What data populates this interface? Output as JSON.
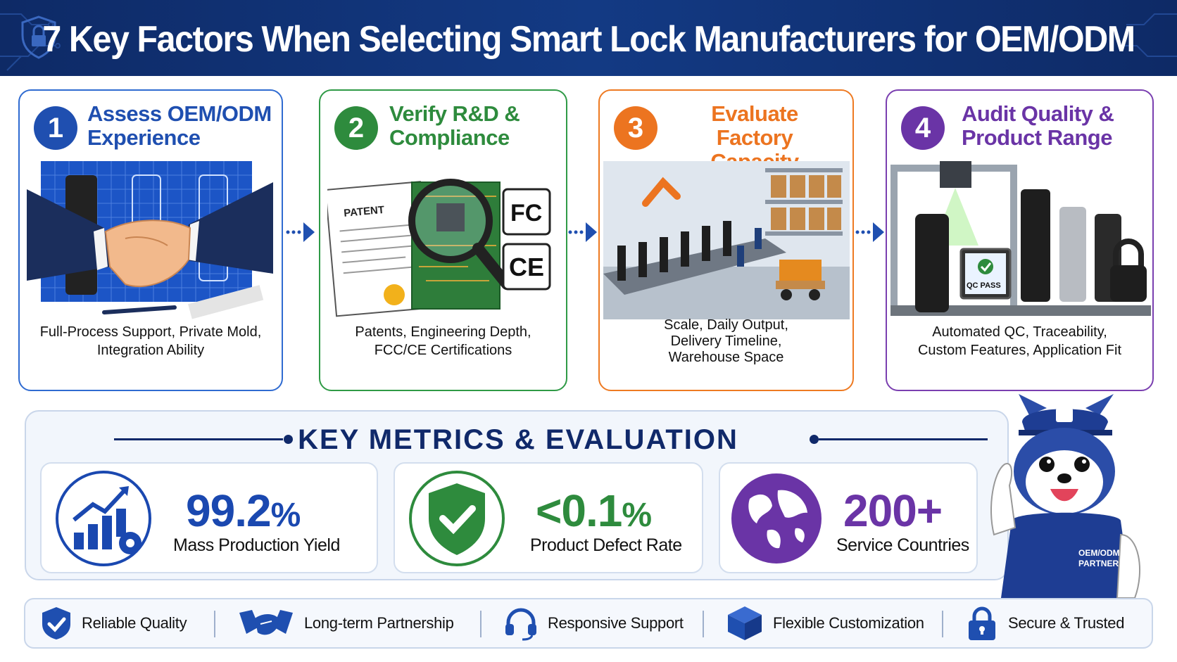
{
  "header": {
    "title": "7 Key Factors When Selecting Smart Lock Manufacturers for OEM/ODM"
  },
  "steps": [
    {
      "number": "1",
      "title_line1": "Assess OEM/ODM",
      "title_line2": "Experience",
      "desc_line1": "Full-Process Support, Private Mold,",
      "desc_line2": "Integration Ability",
      "desc_line3": "",
      "color": "#1f4fb0"
    },
    {
      "number": "2",
      "title_line1": "Verify R&D &",
      "title_line2": "Compliance",
      "desc_line1": "Patents, Engineering Depth,",
      "desc_line2": "FCC/CE Certifications",
      "desc_line3": "",
      "color": "#2e8b3d",
      "patent_label": "PATENT",
      "cert_fc": "FC",
      "cert_ce": "CE"
    },
    {
      "number": "3",
      "title_line1": "Evaluate Factory",
      "title_line2": "Capacity",
      "desc_line1": "Scale, Daily Output,",
      "desc_line2": "Delivery Timeline,",
      "desc_line3": "Warehouse Space",
      "color": "#ec7420"
    },
    {
      "number": "4",
      "title_line1": "Audit Quality &",
      "title_line2": "Product Range",
      "desc_line1": "Automated QC, Traceability,",
      "desc_line2": "Custom Features, Application Fit",
      "desc_line3": "",
      "color": "#6a34a6",
      "qc_label": "QC PASS"
    }
  ],
  "metrics": {
    "title": "KEY METRICS & EVALUATION",
    "items": [
      {
        "value": "99.2",
        "unit": "%",
        "label": "Mass Production Yield",
        "color": "#1a48b0",
        "icon": "chart-gear-icon"
      },
      {
        "value": "<0.1",
        "unit": "%",
        "label": "Product Defect Rate",
        "color": "#2e8b3d",
        "icon": "shield-check-icon"
      },
      {
        "value": "200+",
        "unit": "",
        "label": "Service Countries",
        "color": "#6a34a6",
        "icon": "globe-icon"
      }
    ]
  },
  "mascot": {
    "shirt_line1": "OEM/ODM",
    "shirt_line2": "PARTNER"
  },
  "footer": {
    "items": [
      {
        "label": "Reliable Quality",
        "icon": "shield-check-icon"
      },
      {
        "label": "Long-term Partnership",
        "icon": "handshake-icon"
      },
      {
        "label": "Responsive Support",
        "icon": "headset-icon"
      },
      {
        "label": "Flexible Customization",
        "icon": "cube-icon"
      },
      {
        "label": "Secure & Trusted",
        "icon": "padlock-icon"
      }
    ]
  },
  "colors": {
    "navy": "#10296a",
    "blue": "#1f4fb0",
    "green": "#2e8b3d",
    "orange": "#ec7420",
    "purple": "#6a34a6"
  }
}
